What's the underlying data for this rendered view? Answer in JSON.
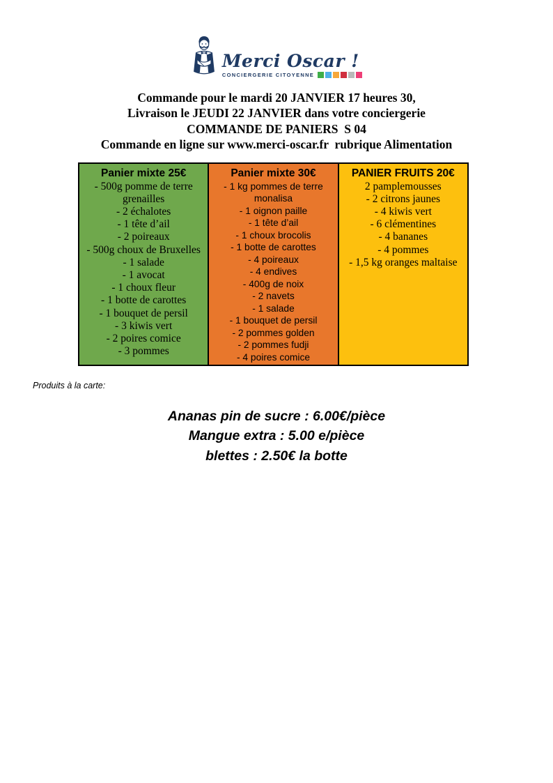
{
  "logo": {
    "brand": "Merci Oscar !",
    "tagline": "CONCIERGERIE CITOYENNE",
    "brand_color": "#1f3a63",
    "square_colors": [
      "#3fae49",
      "#4fb0e8",
      "#f6a83b",
      "#d02f3f",
      "#b9b9b9",
      "#ee3f77"
    ]
  },
  "header_lines": [
    "Commande pour le mardi 20 JANVIER 17 heures 30,",
    "Livraison le JEUDI 22 JANVIER dans votre conciergerie",
    "COMMANDE DE PANIERS  S 04",
    "Commande en ligne sur www.merci-oscar.fr  rubrique Alimentation"
  ],
  "baskets": [
    {
      "title": "Panier mixte 25€",
      "color": "#6fa84c",
      "items": [
        "- 500g pomme de terre grenailles",
        "- 2 échalotes",
        "- 1 tête d’ail",
        "- 2 poireaux",
        "- 500g choux de Bruxelles",
        "- 1 salade",
        "- 1 avocat",
        "- 1 choux fleur",
        "- 1 botte de carottes",
        "- 1 bouquet de persil",
        "- 3 kiwis vert",
        "- 2 poires comice",
        "- 3 pommes"
      ]
    },
    {
      "title": "Panier mixte 30€",
      "color": "#e8772c",
      "items": [
        "- 1 kg pommes de terre monalisa",
        "- 1 oignon paille",
        "- 1 tête d’ail",
        "- 1 choux brocolis",
        "- 1 botte de carottes",
        "- 4 poireaux",
        "- 4 endives",
        "- 400g de noix",
        "- 2 navets",
        "- 1 salade",
        "- 1 bouquet de persil",
        "- 2 pommes golden",
        "- 2 pommes fudji",
        "- 4 poires comice"
      ]
    },
    {
      "title": "PANIER FRUITS 20€",
      "color": "#fdc00e",
      "items": [
        "2 pamplemousses",
        "- 2 citrons jaunes",
        "- 4 kiwis vert",
        "- 6 clémentines",
        "- 4 bananes",
        "- 4 pommes",
        "- 1,5 kg oranges maltaise"
      ]
    }
  ],
  "a_la_carte": {
    "label": "Produits à la carte:",
    "lines": [
      "Ananas pin de sucre : 6.00€/pièce",
      "Mangue extra : 5.00 e/pièce",
      "blettes : 2.50€ la botte"
    ]
  }
}
